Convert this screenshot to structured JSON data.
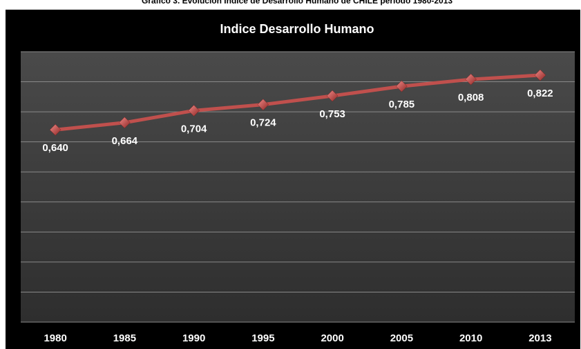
{
  "chart_data": {
    "type": "line",
    "caption": "Gráfico 3. Evolución Índice de Desarrollo Humano de CHILE periodo 1980-2013",
    "title": "Indice Desarrollo Humano",
    "categories": [
      "1980",
      "1985",
      "1990",
      "1995",
      "2000",
      "2005",
      "2010",
      "2013"
    ],
    "series": [
      {
        "name": "Indice Desarrollo Humano",
        "color": "#c0504d",
        "values": [
          0.64,
          0.664,
          0.704,
          0.724,
          0.753,
          0.785,
          0.808,
          0.822
        ],
        "value_labels": [
          "0,640",
          "0,664",
          "0,704",
          "0,724",
          "0,753",
          "0,785",
          "0,808",
          "0,822"
        ]
      }
    ],
    "ylim": [
      0,
      0.9
    ],
    "yticks": [
      0,
      0.1,
      0.2,
      0.3,
      0.4,
      0.5,
      0.6,
      0.7,
      0.8,
      0.9
    ],
    "grid": true
  }
}
